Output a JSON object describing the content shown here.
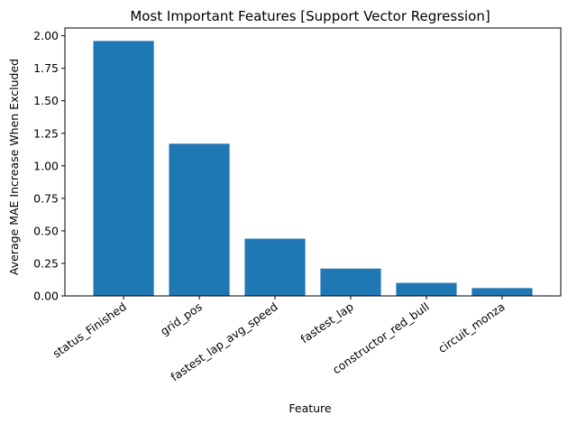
{
  "chart_data": {
    "type": "bar",
    "title": "Most Important Features [Support Vector Regression]",
    "xlabel": "Feature",
    "ylabel": "Average MAE Increase When Excluded",
    "categories": [
      "status_Finished",
      "grid_pos",
      "fastest_lap_avg_speed",
      "fastest_lap",
      "constructor_red_bull",
      "circuit_monza"
    ],
    "values": [
      1.96,
      1.17,
      0.44,
      0.21,
      0.1,
      0.06
    ],
    "ylim": [
      0,
      2.06
    ],
    "yticks": [
      "0.00",
      "0.25",
      "0.50",
      "0.75",
      "1.00",
      "1.25",
      "1.50",
      "1.75",
      "2.00"
    ],
    "bar_color": "#1f77b4",
    "grid": false,
    "legend": "none"
  }
}
